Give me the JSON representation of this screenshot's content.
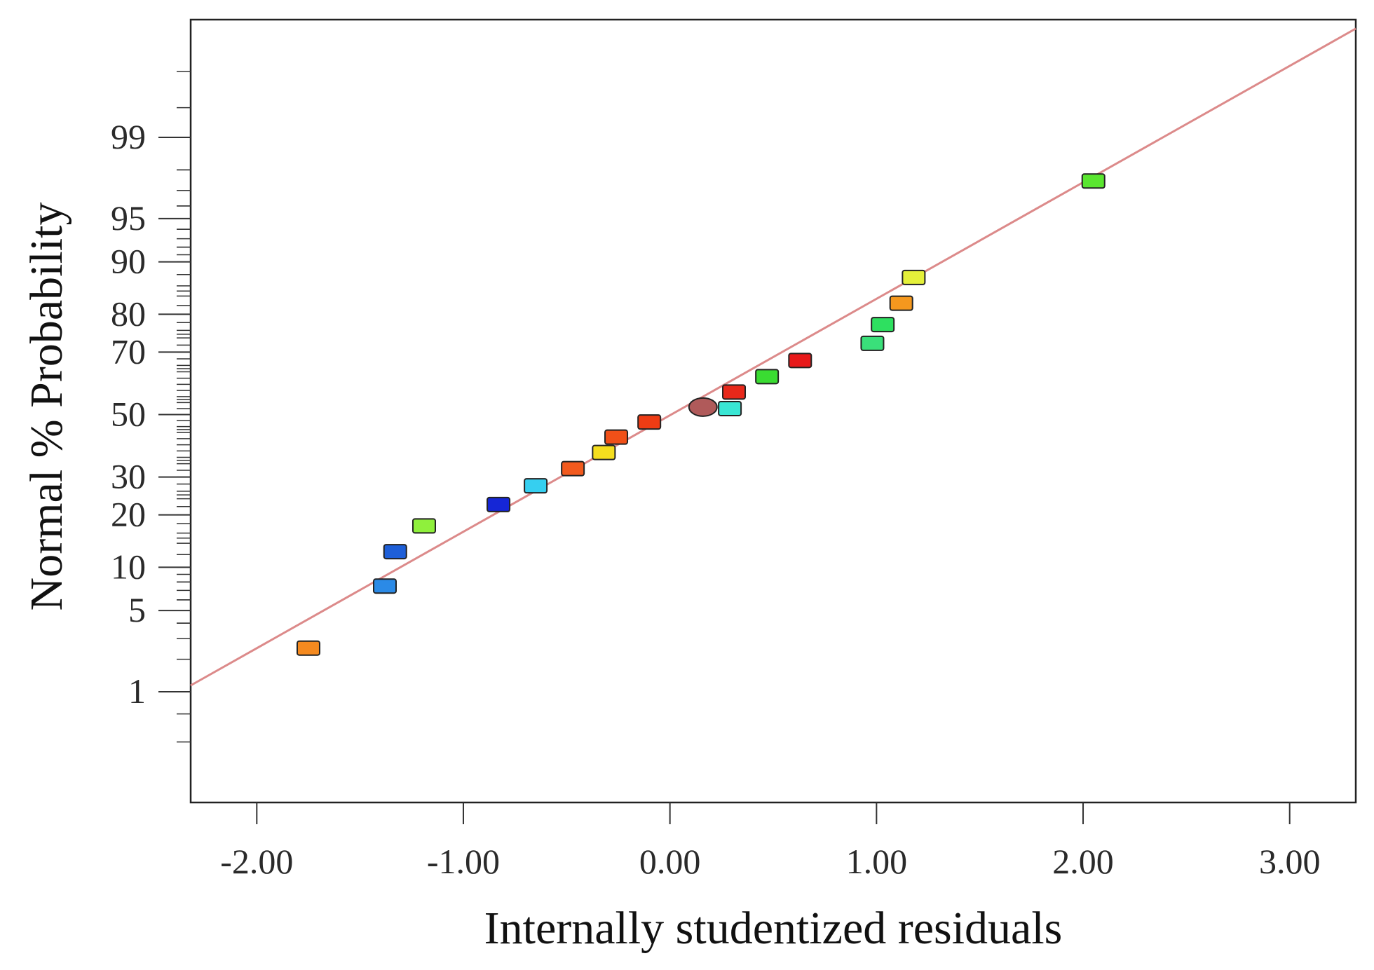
{
  "chart_data": {
    "type": "scatter",
    "title": "",
    "xlabel": "Internally studentized residuals",
    "ylabel": "Normal % Probability",
    "xlim": [
      -2.32,
      3.32
    ],
    "ylim_probability": [
      0.1,
      99.97
    ],
    "y_scale": "normal-probability",
    "x_ticks": [
      {
        "value": -2,
        "label": "-2.00"
      },
      {
        "value": -1,
        "label": "-1.00"
      },
      {
        "value": 0,
        "label": "0.00"
      },
      {
        "value": 1,
        "label": "1.00"
      },
      {
        "value": 2,
        "label": "2.00"
      },
      {
        "value": 3,
        "label": "3.00"
      }
    ],
    "y_ticks": [
      {
        "value": 1,
        "label": "1"
      },
      {
        "value": 5,
        "label": "5"
      },
      {
        "value": 10,
        "label": "10"
      },
      {
        "value": 20,
        "label": "20"
      },
      {
        "value": 30,
        "label": "30"
      },
      {
        "value": 50,
        "label": "50"
      },
      {
        "value": 70,
        "label": "70"
      },
      {
        "value": 80,
        "label": "80"
      },
      {
        "value": 90,
        "label": "90"
      },
      {
        "value": 95,
        "label": "95"
      },
      {
        "value": 99,
        "label": "99"
      }
    ],
    "fit_line": {
      "color": "#dc8a8a",
      "x": [
        -2.32,
        3.32
      ],
      "p": [
        1.15,
        99.94
      ]
    },
    "points": [
      {
        "x": -1.75,
        "p": 2.5,
        "color": "#f58a1f",
        "shape": "rect"
      },
      {
        "x": -1.38,
        "p": 7.5,
        "color": "#2b8ae6",
        "shape": "rect"
      },
      {
        "x": -1.33,
        "p": 12.5,
        "color": "#1e5fd8",
        "shape": "rect"
      },
      {
        "x": -1.19,
        "p": 17.5,
        "color": "#8ff03c",
        "shape": "rect"
      },
      {
        "x": -0.83,
        "p": 22.5,
        "color": "#1526d6",
        "shape": "rect"
      },
      {
        "x": -0.65,
        "p": 27.5,
        "color": "#36cff0",
        "shape": "rect"
      },
      {
        "x": -0.47,
        "p": 32.5,
        "color": "#f25a1e",
        "shape": "rect"
      },
      {
        "x": -0.32,
        "p": 37.5,
        "color": "#f5de1e",
        "shape": "rect"
      },
      {
        "x": -0.26,
        "p": 42.5,
        "color": "#f05018",
        "shape": "rect"
      },
      {
        "x": -0.1,
        "p": 47.5,
        "color": "#ee3c14",
        "shape": "rect"
      },
      {
        "x": 0.16,
        "p": 52.5,
        "color": "#b05a5a",
        "shape": "ellipse"
      },
      {
        "x": 0.29,
        "p": 52.0,
        "color": "#3ae6d4",
        "shape": "rect"
      },
      {
        "x": 0.31,
        "p": 57.5,
        "color": "#e8281a",
        "shape": "rect"
      },
      {
        "x": 0.47,
        "p": 62.5,
        "color": "#3adc32",
        "shape": "rect"
      },
      {
        "x": 0.63,
        "p": 67.5,
        "color": "#e8191a",
        "shape": "rect"
      },
      {
        "x": 0.98,
        "p": 72.5,
        "color": "#3ae07a",
        "shape": "rect"
      },
      {
        "x": 1.03,
        "p": 77.5,
        "color": "#2ee060",
        "shape": "rect"
      },
      {
        "x": 1.12,
        "p": 82.5,
        "color": "#f5981e",
        "shape": "rect"
      },
      {
        "x": 1.18,
        "p": 87.5,
        "color": "#e4f03a",
        "shape": "rect"
      },
      {
        "x": 2.05,
        "p": 97.5,
        "color": "#5ae630",
        "shape": "rect"
      }
    ]
  }
}
